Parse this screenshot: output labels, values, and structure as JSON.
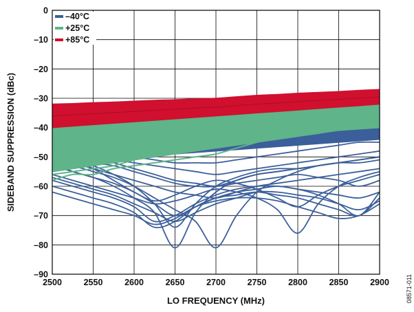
{
  "chart_data": {
    "type": "line",
    "xlabel": "LO FREQUENCY (MHz)",
    "ylabel": "SIDEBAND SUPPRESSION (dBc)",
    "xlim": [
      2500,
      2900
    ],
    "ylim": [
      -90,
      0
    ],
    "x_ticks": [
      "2500",
      "2550",
      "2600",
      "2650",
      "2700",
      "2750",
      "2800",
      "2850",
      "2900"
    ],
    "y_ticks": [
      "0",
      "–10",
      "–20",
      "–30",
      "–40",
      "–50",
      "–60",
      "–70",
      "–80",
      "–90"
    ],
    "grid": true,
    "legend_position": "top-left",
    "figure_id": "08571-011",
    "x": [
      2500,
      2525,
      2550,
      2575,
      2600,
      2625,
      2650,
      2675,
      2700,
      2725,
      2750,
      2775,
      2800,
      2825,
      2850,
      2875,
      2900
    ],
    "series": [
      {
        "name": "–40°C",
        "color": "#3b5f9b",
        "band_upper": [
          -47,
          -46,
          -45,
          -44,
          -43,
          -42,
          -41,
          -40.5,
          -40,
          -39.5,
          -39,
          -38.5,
          -38,
          -37.5,
          -37,
          -36.5,
          -36
        ],
        "curves": [
          [
            -50,
            -51,
            -53,
            -56,
            -60,
            -66,
            -74,
            -66,
            -60,
            -57,
            -55,
            -54,
            -54,
            -53,
            -52,
            -52,
            -51
          ],
          [
            -52,
            -55,
            -57,
            -60,
            -64,
            -69,
            -81,
            -69,
            -62,
            -58,
            -56,
            -55,
            -54,
            -53,
            -52,
            -51,
            -50
          ],
          [
            -51,
            -53,
            -55,
            -57,
            -60,
            -64,
            -68,
            -72,
            -81,
            -70,
            -62,
            -58,
            -55,
            -53,
            -52,
            -51,
            -50
          ],
          [
            -56,
            -58,
            -60,
            -62,
            -64,
            -66,
            -65,
            -63,
            -61,
            -62,
            -64,
            -68,
            -76,
            -66,
            -60,
            -57,
            -55
          ],
          [
            -58,
            -60,
            -62,
            -64,
            -67,
            -72,
            -70,
            -66,
            -63,
            -61,
            -60,
            -60,
            -61,
            -63,
            -66,
            -70,
            -62
          ],
          [
            -60,
            -62,
            -64,
            -66,
            -69,
            -74,
            -72,
            -67,
            -64,
            -63,
            -62,
            -63,
            -64,
            -66,
            -68,
            -70,
            -64
          ],
          [
            -62,
            -64,
            -66,
            -68,
            -70,
            -73,
            -71,
            -67,
            -65,
            -64,
            -64,
            -65,
            -67,
            -69,
            -71,
            -70,
            -66
          ],
          [
            -53,
            -55,
            -57,
            -59,
            -62,
            -66,
            -70,
            -67,
            -64,
            -62,
            -61,
            -60,
            -61,
            -62,
            -63,
            -64,
            -62
          ],
          [
            -50,
            -52,
            -54,
            -56,
            -58,
            -60,
            -62,
            -63,
            -64,
            -62,
            -60,
            -59,
            -58,
            -57,
            -56,
            -55,
            -54
          ],
          [
            -48,
            -50,
            -52,
            -53,
            -55,
            -57,
            -59,
            -60,
            -60,
            -58,
            -56,
            -55,
            -54,
            -53,
            -52,
            -51,
            -50
          ],
          [
            -47,
            -49,
            -50,
            -51,
            -52,
            -53,
            -54,
            -55,
            -56,
            -55,
            -54,
            -53,
            -52,
            -51,
            -50,
            -49,
            -48
          ],
          [
            -46,
            -47,
            -48,
            -49,
            -50,
            -51,
            -52,
            -52,
            -52,
            -51,
            -50,
            -49,
            -48,
            -47,
            -46,
            -45,
            -45
          ],
          [
            -57,
            -59,
            -61,
            -63,
            -66,
            -69,
            -72,
            -69,
            -66,
            -64,
            -62,
            -62,
            -63,
            -64,
            -66,
            -68,
            -65
          ],
          [
            -49,
            -51,
            -54,
            -58,
            -62,
            -65,
            -63,
            -60,
            -58,
            -59,
            -61,
            -64,
            -67,
            -63,
            -60,
            -58,
            -56
          ],
          [
            -47,
            -48,
            -50,
            -52,
            -54,
            -56,
            -58,
            -59,
            -60,
            -59,
            -58,
            -57,
            -56,
            -57,
            -58,
            -60,
            -58
          ]
        ]
      },
      {
        "name": "+25°C",
        "color": "#5fb48a",
        "band_upper": [
          -38,
          -37.5,
          -37,
          -36,
          -35,
          -34.5,
          -34,
          -33.5,
          -33,
          -32.5,
          -32,
          -31.5,
          -31,
          -30.5,
          -30,
          -29.5,
          -29
        ],
        "band_lower": [
          -55,
          -54,
          -53,
          -52,
          -51,
          -50,
          -49,
          -48,
          -47,
          -46,
          -45,
          -44,
          -43,
          -42,
          -41,
          -40.5,
          -40
        ],
        "curves": [
          [
            -58,
            -56,
            -56,
            -54,
            -53,
            -52,
            -51,
            -50,
            -49,
            -47,
            -45,
            -43,
            -41,
            -40,
            -39,
            -38,
            -37
          ],
          [
            -56,
            -55,
            -54,
            -53,
            -51,
            -49,
            -47,
            -46,
            -45,
            -44,
            -43,
            -42,
            -41,
            -40,
            -39,
            -38.5,
            -38
          ]
        ]
      },
      {
        "name": "+85°C",
        "color": "#d0102e",
        "band_upper": [
          -32,
          -31.8,
          -31.5,
          -31.3,
          -31,
          -30.7,
          -30.5,
          -30.2,
          -30,
          -29.5,
          -29,
          -28.7,
          -28.3,
          -28,
          -27.7,
          -27.3,
          -27
        ],
        "band_lower": [
          -40,
          -39.5,
          -39,
          -38.5,
          -38,
          -37.5,
          -37,
          -36.5,
          -36,
          -35.5,
          -35,
          -34.5,
          -34,
          -33.5,
          -33,
          -32.5,
          -32
        ]
      }
    ]
  }
}
